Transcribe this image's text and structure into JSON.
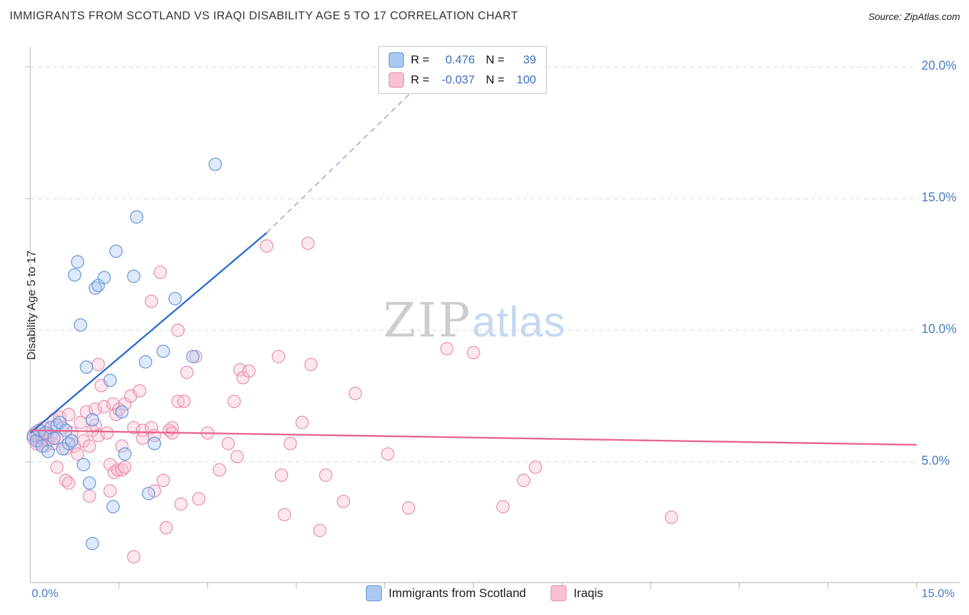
{
  "header": {
    "title": "IMMIGRANTS FROM SCOTLAND VS IRAQI DISABILITY AGE 5 TO 17 CORRELATION CHART",
    "source": "Source: ZipAtlas.com"
  },
  "watermark": {
    "zip": "ZIP",
    "atlas": "atlas"
  },
  "axes": {
    "y_label": "Disability Age 5 to 17",
    "x_min_label": "0.0%",
    "x_max_label": "15.0%",
    "y_tick_labels": [
      "20.0%",
      "15.0%",
      "10.0%",
      "5.0%"
    ]
  },
  "stats_box": {
    "rows": [
      {
        "r_label": "R =",
        "r_value": "0.476",
        "n_label": "N =",
        "n_value": "39"
      },
      {
        "r_label": "R =",
        "r_value": "-0.037",
        "n_label": "N =",
        "n_value": "100"
      }
    ]
  },
  "legend": {
    "items": [
      {
        "label": "Immigrants from Scotland"
      },
      {
        "label": "Iraqis"
      }
    ]
  },
  "chart_data": {
    "type": "scatter",
    "title": "IMMIGRANTS FROM SCOTLAND VS IRAQI DISABILITY AGE 5 TO 17 CORRELATION CHART",
    "xlabel": "Immigrants from Scotland (%)",
    "ylabel": "Disability Age 5 to 17",
    "xlim": [
      0,
      15
    ],
    "ylim": [
      0.4,
      20.6
    ],
    "x_ticks": [
      1.5,
      3,
      4.5,
      6,
      7.5,
      9,
      10.5,
      12,
      13.5,
      15
    ],
    "y_gridlines": [
      5,
      10,
      15,
      20
    ],
    "grid": "dashed horizontal",
    "legend_position": "bottom-center",
    "colors": {
      "axis_label_blue": "#4a7cc7",
      "stat_value_blue": "#3b6fc4",
      "gridline": "#d9d9d9",
      "axis_line": "#c0c0c0"
    },
    "series": [
      {
        "name": "Immigrants from Scotland",
        "R": 0.476,
        "N": 39,
        "fill": "#a9c9f4",
        "stroke": "#5e8fd6",
        "points": [
          [
            0.05,
            6.0
          ],
          [
            0.1,
            5.8
          ],
          [
            0.15,
            6.2
          ],
          [
            0.2,
            5.6
          ],
          [
            0.25,
            6.1
          ],
          [
            0.3,
            5.4
          ],
          [
            0.35,
            6.3
          ],
          [
            0.4,
            5.9
          ],
          [
            0.45,
            6.4
          ],
          [
            0.5,
            6.5
          ],
          [
            0.55,
            5.5
          ],
          [
            0.6,
            6.2
          ],
          [
            0.65,
            5.7
          ],
          [
            0.7,
            5.8
          ],
          [
            0.75,
            12.1
          ],
          [
            0.8,
            12.6
          ],
          [
            0.85,
            10.2
          ],
          [
            0.9,
            4.9
          ],
          [
            0.95,
            8.6
          ],
          [
            1.0,
            4.2
          ],
          [
            1.05,
            1.9
          ],
          [
            1.05,
            6.6
          ],
          [
            1.1,
            11.6
          ],
          [
            1.15,
            11.7
          ],
          [
            1.25,
            12.0
          ],
          [
            1.35,
            8.1
          ],
          [
            1.4,
            3.3
          ],
          [
            1.45,
            13.0
          ],
          [
            1.55,
            6.9
          ],
          [
            1.6,
            5.3
          ],
          [
            1.75,
            12.05
          ],
          [
            1.8,
            14.3
          ],
          [
            1.95,
            8.8
          ],
          [
            2.0,
            3.8
          ],
          [
            2.1,
            5.7
          ],
          [
            2.25,
            9.2
          ],
          [
            2.45,
            11.2
          ],
          [
            2.75,
            9.0
          ],
          [
            3.13,
            16.3
          ]
        ]
      },
      {
        "name": "Iraqis",
        "R": -0.037,
        "N": 100,
        "fill": "#f9c0d2",
        "stroke": "#e687a9",
        "points": [
          [
            0.05,
            5.9
          ],
          [
            0.08,
            6.1
          ],
          [
            0.1,
            5.7
          ],
          [
            0.12,
            6.0
          ],
          [
            0.15,
            5.8
          ],
          [
            0.18,
            6.2
          ],
          [
            0.2,
            5.9
          ],
          [
            0.22,
            6.3
          ],
          [
            0.25,
            5.6
          ],
          [
            0.28,
            6.1
          ],
          [
            0.3,
            5.8
          ],
          [
            0.35,
            6.0
          ],
          [
            0.38,
            5.7
          ],
          [
            0.4,
            6.6
          ],
          [
            0.45,
            5.9
          ],
          [
            0.45,
            4.8
          ],
          [
            0.5,
            6.7
          ],
          [
            0.55,
            6.3
          ],
          [
            0.6,
            5.5
          ],
          [
            0.6,
            4.3
          ],
          [
            0.65,
            6.8
          ],
          [
            0.65,
            4.2
          ],
          [
            0.7,
            6.1
          ],
          [
            0.75,
            5.6
          ],
          [
            0.8,
            5.3
          ],
          [
            0.85,
            6.5
          ],
          [
            0.9,
            5.8
          ],
          [
            0.95,
            6.9
          ],
          [
            1.0,
            5.6
          ],
          [
            1.0,
            3.7
          ],
          [
            1.05,
            6.2
          ],
          [
            1.1,
            7.0
          ],
          [
            1.1,
            6.4
          ],
          [
            1.15,
            6.0
          ],
          [
            1.15,
            8.7
          ],
          [
            1.2,
            7.9
          ],
          [
            1.25,
            7.1
          ],
          [
            1.3,
            6.1
          ],
          [
            1.35,
            4.9
          ],
          [
            1.35,
            3.9
          ],
          [
            1.4,
            7.2
          ],
          [
            1.42,
            4.6
          ],
          [
            1.45,
            6.8
          ],
          [
            1.48,
            4.7
          ],
          [
            1.5,
            7.0
          ],
          [
            1.55,
            5.6
          ],
          [
            1.55,
            4.7
          ],
          [
            1.6,
            7.2
          ],
          [
            1.6,
            4.8
          ],
          [
            1.7,
            7.5
          ],
          [
            1.75,
            1.4
          ],
          [
            1.75,
            6.3
          ],
          [
            1.85,
            7.7
          ],
          [
            1.9,
            6.2
          ],
          [
            1.9,
            5.9
          ],
          [
            2.05,
            11.1
          ],
          [
            2.05,
            6.3
          ],
          [
            2.1,
            6.0
          ],
          [
            2.1,
            3.9
          ],
          [
            2.2,
            12.2
          ],
          [
            2.25,
            4.3
          ],
          [
            2.3,
            2.5
          ],
          [
            2.35,
            6.2
          ],
          [
            2.4,
            6.3
          ],
          [
            2.4,
            6.1
          ],
          [
            2.5,
            10.0
          ],
          [
            2.5,
            7.3
          ],
          [
            2.55,
            3.4
          ],
          [
            2.6,
            7.3
          ],
          [
            2.65,
            8.4
          ],
          [
            2.8,
            9.0
          ],
          [
            2.85,
            3.6
          ],
          [
            3.0,
            6.1
          ],
          [
            3.2,
            4.7
          ],
          [
            3.35,
            5.7
          ],
          [
            3.45,
            7.3
          ],
          [
            3.5,
            5.2
          ],
          [
            3.55,
            8.5
          ],
          [
            3.6,
            8.2
          ],
          [
            3.7,
            8.45
          ],
          [
            4.0,
            13.2
          ],
          [
            4.2,
            9.0
          ],
          [
            4.25,
            4.5
          ],
          [
            4.3,
            3.0
          ],
          [
            4.4,
            5.7
          ],
          [
            4.6,
            6.5
          ],
          [
            4.7,
            13.3
          ],
          [
            4.75,
            8.7
          ],
          [
            4.9,
            2.4
          ],
          [
            5.0,
            4.5
          ],
          [
            5.3,
            3.5
          ],
          [
            5.5,
            7.6
          ],
          [
            6.05,
            5.3
          ],
          [
            6.4,
            3.25
          ],
          [
            7.05,
            9.3
          ],
          [
            7.5,
            9.15
          ],
          [
            8.0,
            3.3
          ],
          [
            8.35,
            4.3
          ],
          [
            8.55,
            4.8
          ],
          [
            10.85,
            2.9
          ]
        ]
      }
    ],
    "trend_lines": [
      {
        "series": "Immigrants from Scotland",
        "color": "#2b6bd0",
        "x1": 0,
        "y1": 6.1,
        "x2": 4.0,
        "y2": 13.7,
        "dashed_extension": {
          "color": "#9aacc8",
          "x2": 6.5,
          "y2": 19.15
        }
      },
      {
        "series": "Iraqis",
        "color": "#e8638e",
        "x1": 0,
        "y1": 6.2,
        "x2": 15,
        "y2": 5.65
      }
    ]
  }
}
